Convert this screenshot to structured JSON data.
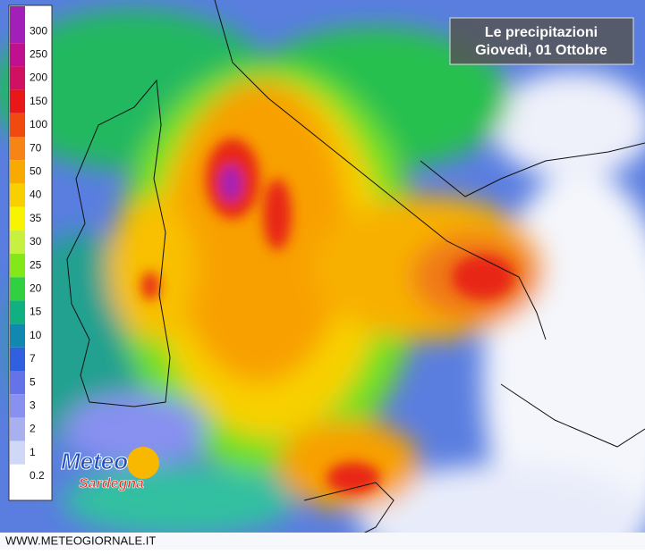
{
  "header": {
    "title_line1": "Le precipitazioni",
    "title_line2": "Giovedì, 01 Ottobre"
  },
  "legend": {
    "items": [
      {
        "value": 300,
        "color": "#a020b8"
      },
      {
        "value": 250,
        "color": "#c01090"
      },
      {
        "value": 200,
        "color": "#d01060"
      },
      {
        "value": 150,
        "color": "#e81818"
      },
      {
        "value": 100,
        "color": "#f04a10"
      },
      {
        "value": 70,
        "color": "#f88418"
      },
      {
        "value": 50,
        "color": "#f8aa00"
      },
      {
        "value": 40,
        "color": "#f8d000"
      },
      {
        "value": 35,
        "color": "#f8f400"
      },
      {
        "value": 30,
        "color": "#c8f040"
      },
      {
        "value": 25,
        "color": "#84e818"
      },
      {
        "value": 20,
        "color": "#30d040"
      },
      {
        "value": 15,
        "color": "#10b080"
      },
      {
        "value": 10,
        "color": "#1088b0"
      },
      {
        "value": 7,
        "color": "#3060e0"
      },
      {
        "value": 5,
        "color": "#6474e8"
      },
      {
        "value": 3,
        "color": "#8890f0"
      },
      {
        "value": 2,
        "color": "#a8b0f0"
      },
      {
        "value": 1,
        "color": "#d0d8f8"
      },
      {
        "value": 0.2,
        "color": "#ffffff"
      }
    ]
  },
  "logo": {
    "line1": "Meteo",
    "line2": "Sardegna"
  },
  "footer": {
    "url": "WWW.METEOGIORNALE.IT"
  }
}
